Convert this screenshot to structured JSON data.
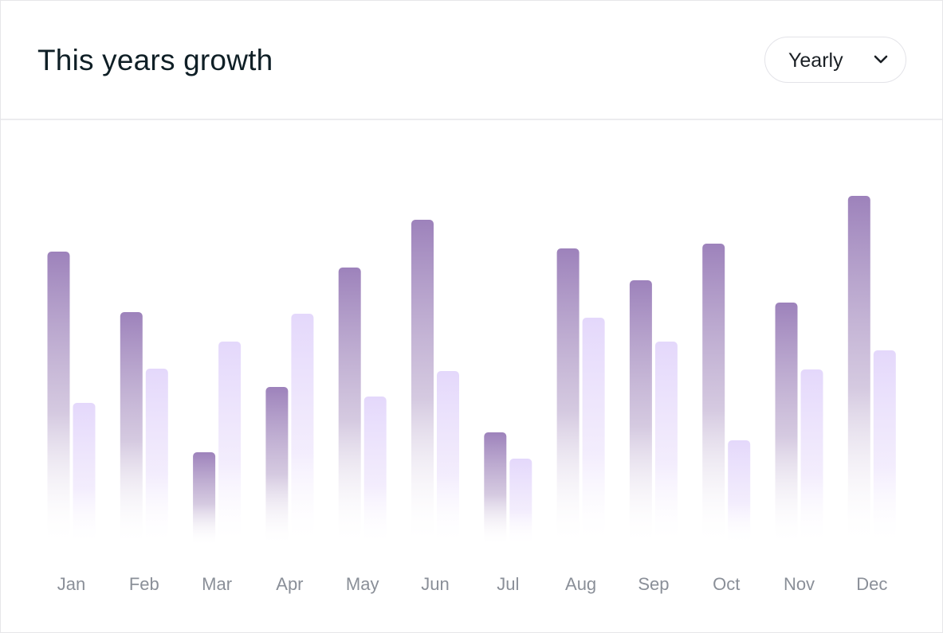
{
  "header": {
    "title": "This years growth",
    "period_label": "Yearly",
    "period_icon": "chevron-down-icon"
  },
  "colors": {
    "series_primary": "#9d82bb",
    "series_secondary": "#e6dcfb",
    "tick_label": "#8a8f98",
    "title": "#0f1f26"
  },
  "chart_data": {
    "type": "bar",
    "categories": [
      "Jan",
      "Feb",
      "Mar",
      "Apr",
      "May",
      "Jun",
      "Jul",
      "Aug",
      "Sep",
      "Oct",
      "Nov",
      "Dec"
    ],
    "series": [
      {
        "values": [
          370,
          294,
          118,
          200,
          350,
          410,
          143,
          374,
          334,
          380,
          306,
          440
        ]
      },
      {
        "values": [
          180,
          223,
          257,
          292,
          188,
          220,
          110,
          287,
          257,
          133,
          222,
          246
        ]
      }
    ],
    "title": "This years growth",
    "xlabel": "",
    "ylabel": "",
    "ylim": [
      0,
      450
    ],
    "grid": false,
    "legend": "none"
  }
}
